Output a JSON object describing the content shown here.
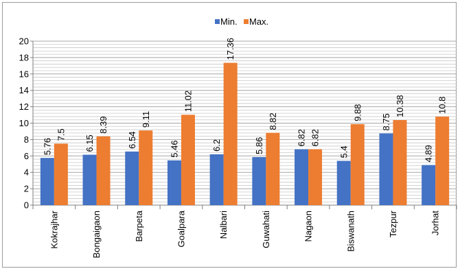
{
  "chart_data": {
    "type": "bar",
    "categories": [
      "Kokrajhar",
      "Bongaigaon",
      "Barpeta",
      "Goalpara",
      "Nalbari",
      "Guwahati",
      "Nagaon",
      "Biswanath",
      "Tezpur",
      "Jorhat"
    ],
    "series": [
      {
        "name": "Min.",
        "color": "#4472C4",
        "values": [
          5.76,
          6.15,
          6.54,
          5.46,
          6.2,
          5.86,
          6.82,
          5.4,
          8.75,
          4.89
        ]
      },
      {
        "name": "Max.",
        "color": "#ED7D31",
        "values": [
          7.5,
          8.39,
          9.11,
          11.02,
          17.36,
          8.82,
          6.82,
          9.88,
          10.38,
          10.8
        ]
      }
    ],
    "data_labels": [
      [
        "5.76",
        "6.15",
        "6.54",
        "5.46",
        "6.2",
        "5.86",
        "6.82",
        "5.4",
        "8.75",
        "4.89"
      ],
      [
        "7.5",
        "8.39",
        "9.11",
        "11.02",
        "17.36",
        "8.82",
        "6.82",
        "9.88",
        "10.38",
        "10.8"
      ]
    ],
    "y_ticks": [
      "0",
      "2",
      "4",
      "6",
      "8",
      "10",
      "12",
      "14",
      "16",
      "18",
      "20"
    ],
    "ylim": [
      0,
      20
    ],
    "grid": true,
    "legend": "top-center",
    "title": "",
    "xlabel": "",
    "ylabel": ""
  }
}
